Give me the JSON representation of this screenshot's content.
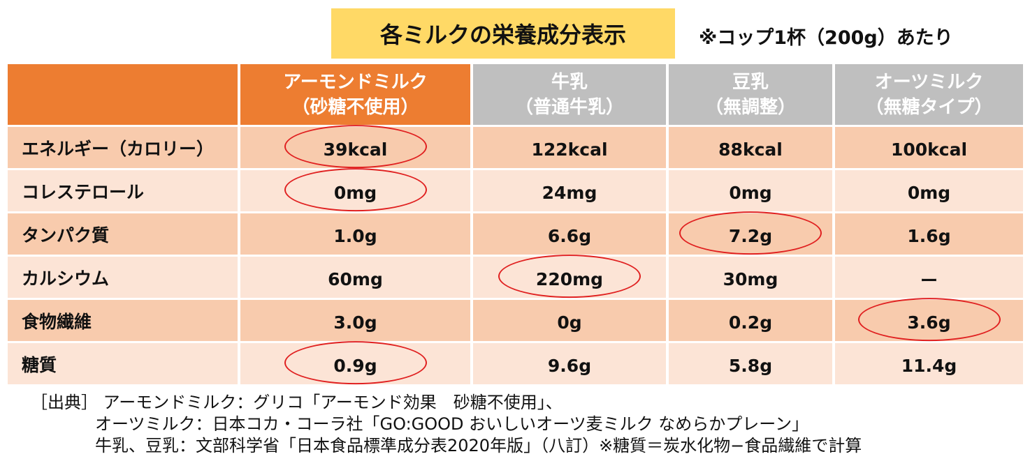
{
  "title": "各ミルクの栄養成分表示",
  "note": "※コップ1杯（200g）あたり",
  "columns": [
    {
      "line1": "アーモンドミルク",
      "line2": "（砂糖不使用）"
    },
    {
      "line1": "牛乳",
      "line2": "（普通牛乳）"
    },
    {
      "line1": "豆乳",
      "line2": "（無調整）"
    },
    {
      "line1": "オーツミルク",
      "line2": "（無糖タイプ）"
    }
  ],
  "rows": [
    {
      "label": "エネルギー（カロリー）",
      "values": [
        "39kcal",
        "122kcal",
        "88kcal",
        "100kcal"
      ]
    },
    {
      "label": "コレステロール",
      "values": [
        "0mg",
        "24mg",
        "0mg",
        "0mg"
      ]
    },
    {
      "label": "タンパク質",
      "values": [
        "1.0g",
        "6.6g",
        "7.2g",
        "1.6g"
      ]
    },
    {
      "label": "カルシウム",
      "values": [
        "60mg",
        "220mg",
        "30mg",
        "ー"
      ]
    },
    {
      "label": "食物繊維",
      "values": [
        "3.0g",
        "0g",
        "0.2g",
        "3.6g"
      ]
    },
    {
      "label": "糖質",
      "values": [
        "0.9g",
        "9.6g",
        "5.8g",
        "11.4g"
      ]
    }
  ],
  "colors": {
    "title_bg": "#ffd966",
    "header_highlight": "#ed7d31",
    "header_other": "#bfbfbf",
    "row_dark": "#f8cbad",
    "row_light": "#fce4d6",
    "circle": "#e02020"
  },
  "source": {
    "line1": "［出典］ アーモンドミルク：グリコ「アーモンド効果　砂糖不使用」、",
    "line2": "オーツミルク：日本コカ・コーラ社「GO:GOOD おいしいオーツ麦ミルク なめらかプレーン」",
    "line3": "牛乳、豆乳：文部科学省「日本食品標準成分表2020年版」（八訂）※糖質＝炭水化物−食品繊維で計算"
  }
}
